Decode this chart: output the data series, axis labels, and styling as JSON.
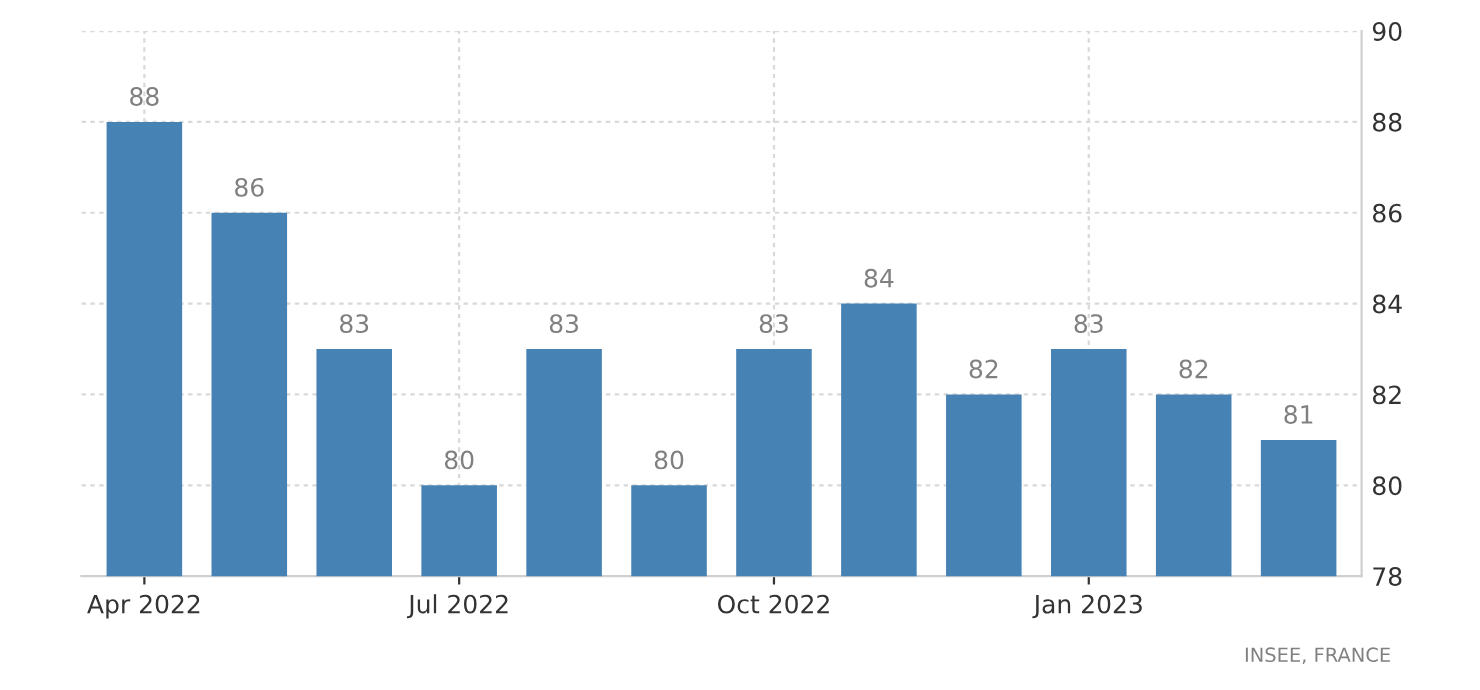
{
  "chart_data": {
    "type": "bar",
    "categories": [
      "Apr 2022",
      null,
      null,
      "Jul 2022",
      null,
      null,
      "Oct 2022",
      null,
      null,
      "Jan 2023",
      null,
      null
    ],
    "values": [
      88,
      86,
      83,
      80,
      83,
      80,
      83,
      84,
      82,
      83,
      82,
      81
    ],
    "color": "#4682b4",
    "ylim": [
      78,
      90
    ],
    "yticks": [
      78,
      80,
      82,
      84,
      86,
      88,
      90
    ],
    "grid": true,
    "data_labels": true,
    "annotations": [
      "INSEE, FRANCE"
    ]
  }
}
